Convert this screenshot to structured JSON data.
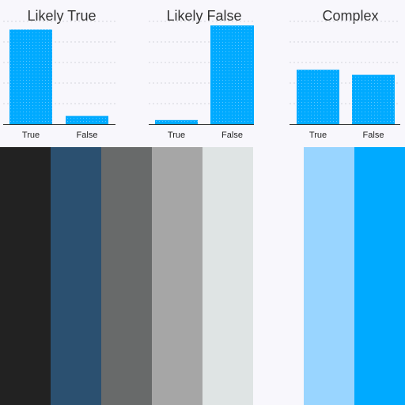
{
  "chart_data": [
    {
      "type": "bar",
      "title": "Likely True",
      "categories": [
        "True",
        "False"
      ],
      "values": [
        0.92,
        0.08
      ],
      "ylim": [
        0,
        1
      ],
      "grid": true,
      "bar_color": "#00aaff"
    },
    {
      "type": "bar",
      "title": "Likely False",
      "categories": [
        "True",
        "False"
      ],
      "values": [
        0.04,
        0.96
      ],
      "ylim": [
        0,
        1
      ],
      "grid": true,
      "bar_color": "#00aaff"
    },
    {
      "type": "bar",
      "title": "Complex",
      "categories": [
        "True",
        "False"
      ],
      "values": [
        0.53,
        0.48
      ],
      "ylim": [
        0,
        1
      ],
      "grid": true,
      "bar_color": "#00aaff"
    }
  ],
  "palette": {
    "colors": [
      "#222222",
      "#2b5070",
      "#686a6a",
      "#a6a6a6",
      "#dfe4e4",
      "#f8f7fc",
      "#99d5ff",
      "#00aaff"
    ]
  }
}
